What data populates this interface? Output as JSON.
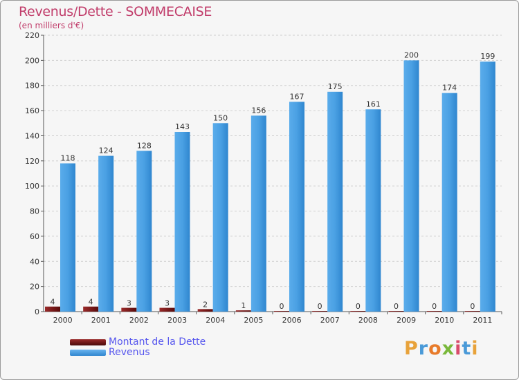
{
  "header": {
    "title": "Revenus/Dette - SOMMECAISE",
    "subtitle": "(en milliers d'€)"
  },
  "logo": {
    "text": "Proxiti",
    "colors": [
      "#e8a23a",
      "#4a9ad8",
      "#e87b2a",
      "#79b83a",
      "#d94b6a",
      "#4a9ad8",
      "#e8a23a"
    ]
  },
  "chart_data": {
    "type": "bar",
    "categories": [
      "2000",
      "2001",
      "2002",
      "2003",
      "2004",
      "2005",
      "2006",
      "2007",
      "2008",
      "2009",
      "2010",
      "2011"
    ],
    "series": [
      {
        "name": "Montant de la Dette",
        "color": "#7a1616",
        "values": [
          4,
          4,
          3,
          3,
          2,
          1,
          0,
          0,
          0,
          0,
          0,
          0
        ]
      },
      {
        "name": "Revenus",
        "color": "#4a9ee0",
        "values": [
          118,
          124,
          128,
          143,
          150,
          156,
          167,
          175,
          161,
          200,
          174,
          199
        ]
      }
    ],
    "ylim": [
      0,
      220
    ],
    "yticks": [
      0,
      20,
      40,
      60,
      80,
      100,
      120,
      140,
      160,
      180,
      200,
      220
    ],
    "grid": true,
    "legend": "bottom-left"
  }
}
